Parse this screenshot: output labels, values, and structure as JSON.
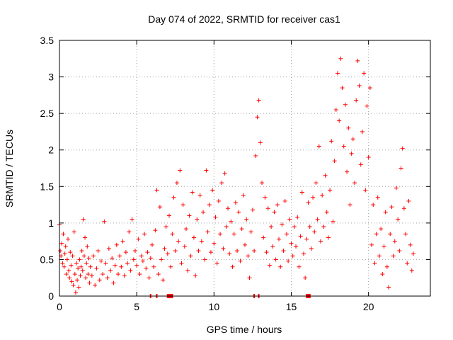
{
  "chart_data": {
    "type": "scatter",
    "title": "Day 074 of 2022, SRMTID for receiver cas1",
    "xlabel": "GPS time / hours",
    "ylabel": "SRMTID / TECUs",
    "xlim": [
      0,
      24
    ],
    "ylim": [
      0,
      3.5
    ],
    "xticks": [
      0,
      5,
      10,
      15,
      20
    ],
    "yticks": [
      0,
      0.5,
      1,
      1.5,
      2,
      2.5,
      3,
      3.5
    ],
    "xtick_labels": [
      "0",
      "5",
      "10",
      "15",
      "20"
    ],
    "ytick_labels": [
      "0",
      "0.5",
      "1",
      "1.5",
      "2",
      "2.5",
      "3",
      "3.5"
    ],
    "grid": true,
    "marker": "+",
    "color": "#ff0000",
    "series": [
      {
        "name": "SRMTID",
        "points": [
          [
            0.0,
            0.98
          ],
          [
            0.05,
            0.62
          ],
          [
            0.1,
            0.55
          ],
          [
            0.15,
            0.72
          ],
          [
            0.2,
            0.45
          ],
          [
            0.25,
            0.85
          ],
          [
            0.3,
            0.4
          ],
          [
            0.35,
            0.58
          ],
          [
            0.4,
            0.68
          ],
          [
            0.45,
            0.3
          ],
          [
            0.5,
            0.5
          ],
          [
            0.55,
            0.78
          ],
          [
            0.6,
            0.35
          ],
          [
            0.65,
            0.25
          ],
          [
            0.7,
            0.6
          ],
          [
            0.75,
            0.42
          ],
          [
            0.8,
            0.2
          ],
          [
            0.85,
            0.55
          ],
          [
            0.9,
            0.15
          ],
          [
            0.95,
            0.88
          ],
          [
            1.0,
            0.3
          ],
          [
            1.05,
            0.05
          ],
          [
            1.1,
            0.45
          ],
          [
            1.15,
            0.22
          ],
          [
            1.2,
            0.38
          ],
          [
            1.25,
            0.12
          ],
          [
            1.3,
            0.5
          ],
          [
            1.35,
            0.28
          ],
          [
            1.4,
            0.4
          ],
          [
            1.45,
            0.62
          ],
          [
            1.5,
            0.35
          ],
          [
            1.55,
            1.05
          ],
          [
            1.6,
            0.55
          ],
          [
            1.65,
            0.8
          ],
          [
            1.7,
            0.25
          ],
          [
            1.75,
            0.45
          ],
          [
            1.8,
            0.68
          ],
          [
            1.85,
            0.3
          ],
          [
            1.9,
            0.52
          ],
          [
            1.95,
            0.18
          ],
          [
            2.0,
            0.4
          ],
          [
            2.1,
            0.28
          ],
          [
            2.2,
            0.55
          ],
          [
            2.3,
            0.15
          ],
          [
            2.4,
            0.38
          ],
          [
            2.5,
            0.62
          ],
          [
            2.6,
            0.22
          ],
          [
            2.7,
            0.48
          ],
          [
            2.8,
            0.3
          ],
          [
            2.9,
            1.02
          ],
          [
            3.0,
            0.45
          ],
          [
            3.1,
            0.25
          ],
          [
            3.2,
            0.65
          ],
          [
            3.3,
            0.35
          ],
          [
            3.4,
            0.52
          ],
          [
            3.5,
            0.18
          ],
          [
            3.6,
            0.42
          ],
          [
            3.7,
            0.7
          ],
          [
            3.8,
            0.3
          ],
          [
            3.9,
            0.55
          ],
          [
            4.0,
            0.4
          ],
          [
            4.1,
            0.75
          ],
          [
            4.2,
            0.28
          ],
          [
            4.3,
            0.6
          ],
          [
            4.4,
            0.45
          ],
          [
            4.5,
            0.88
          ],
          [
            4.6,
            0.35
          ],
          [
            4.7,
            1.05
          ],
          [
            4.8,
            0.5
          ],
          [
            4.9,
            0.62
          ],
          [
            5.0,
            0.42
          ],
          [
            5.1,
            0.78
          ],
          [
            5.2,
            0.3
          ],
          [
            5.3,
            0.55
          ],
          [
            5.4,
            0.48
          ],
          [
            5.5,
            0.85
          ],
          [
            5.6,
            0.38
          ],
          [
            5.7,
            0.6
          ],
          [
            5.8,
            0.25
          ],
          [
            5.9,
            0.52
          ],
          [
            6.0,
            0.7
          ],
          [
            6.1,
            0.4
          ],
          [
            6.2,
            0.9
          ],
          [
            6.3,
            1.45
          ],
          [
            6.4,
            0.3
          ],
          [
            6.5,
            1.22
          ],
          [
            6.6,
            0.5
          ],
          [
            6.7,
            0.22
          ],
          [
            6.8,
            0.65
          ],
          [
            6.9,
            0.95
          ],
          [
            7.0,
            0.58
          ],
          [
            7.1,
            1.1
          ],
          [
            7.2,
            0.4
          ],
          [
            7.3,
            0.85
          ],
          [
            7.4,
            1.35
          ],
          [
            7.5,
            0.62
          ],
          [
            7.6,
            1.55
          ],
          [
            7.7,
            0.75
          ],
          [
            7.8,
            1.72
          ],
          [
            7.9,
            0.45
          ],
          [
            8.0,
            1.25
          ],
          [
            8.1,
            0.68
          ],
          [
            8.2,
            0.92
          ],
          [
            8.3,
            0.35
          ],
          [
            8.4,
            1.1
          ],
          [
            8.5,
            0.55
          ],
          [
            8.6,
            1.42
          ],
          [
            8.7,
            0.8
          ],
          [
            8.8,
            0.28
          ],
          [
            8.9,
            1.05
          ],
          [
            9.0,
            0.62
          ],
          [
            9.1,
            1.38
          ],
          [
            9.2,
            0.75
          ],
          [
            9.3,
            1.15
          ],
          [
            9.4,
            0.5
          ],
          [
            9.5,
            1.72
          ],
          [
            9.6,
            0.88
          ],
          [
            9.7,
            1.25
          ],
          [
            9.8,
            0.6
          ],
          [
            9.9,
            1.45
          ],
          [
            10.0,
            0.72
          ],
          [
            10.1,
            1.08
          ],
          [
            10.2,
            0.45
          ],
          [
            10.3,
            1.3
          ],
          [
            10.4,
            0.85
          ],
          [
            10.5,
            1.55
          ],
          [
            10.6,
            0.65
          ],
          [
            10.7,
            1.68
          ],
          [
            10.8,
            0.95
          ],
          [
            10.9,
            1.2
          ],
          [
            11.0,
            0.58
          ],
          [
            11.1,
            1.02
          ],
          [
            11.2,
            0.4
          ],
          [
            11.3,
            0.85
          ],
          [
            11.4,
            1.28
          ],
          [
            11.5,
            0.62
          ],
          [
            11.6,
            1.15
          ],
          [
            11.7,
            0.48
          ],
          [
            11.8,
            0.92
          ],
          [
            11.9,
            1.38
          ],
          [
            12.0,
            0.7
          ],
          [
            12.1,
            1.05
          ],
          [
            12.2,
            0.55
          ],
          [
            12.3,
            0.25
          ],
          [
            12.4,
            0.88
          ],
          [
            12.5,
            1.18
          ],
          [
            12.6,
            0.62
          ],
          [
            12.7,
            1.92
          ],
          [
            12.8,
            2.45
          ],
          [
            12.9,
            2.68
          ],
          [
            13.0,
            2.1
          ],
          [
            13.1,
            1.55
          ],
          [
            13.2,
            0.8
          ],
          [
            13.3,
            1.35
          ],
          [
            13.4,
            0.6
          ],
          [
            13.5,
            1.2
          ],
          [
            13.6,
            0.42
          ],
          [
            13.7,
            0.95
          ],
          [
            13.8,
            0.68
          ],
          [
            13.9,
            1.15
          ],
          [
            14.0,
            0.5
          ],
          [
            14.1,
            1.25
          ],
          [
            14.2,
            0.78
          ],
          [
            14.3,
            0.4
          ],
          [
            14.4,
            0.98
          ],
          [
            14.5,
            0.62
          ],
          [
            14.6,
            1.3
          ],
          [
            14.7,
            0.85
          ],
          [
            14.8,
            0.48
          ],
          [
            14.9,
            1.05
          ],
          [
            15.0,
            0.72
          ],
          [
            15.1,
            0.55
          ],
          [
            15.2,
            0.95
          ],
          [
            15.3,
            0.68
          ],
          [
            15.4,
            1.08
          ],
          [
            15.5,
            0.4
          ],
          [
            15.6,
            0.82
          ],
          [
            15.7,
            1.42
          ],
          [
            15.8,
            0.58
          ],
          [
            15.9,
            0.25
          ],
          [
            16.0,
            0.78
          ],
          [
            16.1,
            1.28
          ],
          [
            16.2,
            0.95
          ],
          [
            16.3,
            0.65
          ],
          [
            16.4,
            1.35
          ],
          [
            16.5,
            0.88
          ],
          [
            16.6,
            1.55
          ],
          [
            16.7,
            1.05
          ],
          [
            16.8,
            2.05
          ],
          [
            16.9,
            0.75
          ],
          [
            17.0,
            1.38
          ],
          [
            17.1,
            0.95
          ],
          [
            17.2,
            1.65
          ],
          [
            17.3,
            1.15
          ],
          [
            17.4,
            0.8
          ],
          [
            17.5,
            1.45
          ],
          [
            17.6,
            2.12
          ],
          [
            17.7,
            1.02
          ],
          [
            17.8,
            1.85
          ],
          [
            17.9,
            2.55
          ],
          [
            18.0,
            3.05
          ],
          [
            18.1,
            2.4
          ],
          [
            18.2,
            3.25
          ],
          [
            18.3,
            2.85
          ],
          [
            18.4,
            2.05
          ],
          [
            18.5,
            2.62
          ],
          [
            18.6,
            1.7
          ],
          [
            18.7,
            2.3
          ],
          [
            18.8,
            1.25
          ],
          [
            18.9,
            1.95
          ],
          [
            19.0,
            2.15
          ],
          [
            19.1,
            1.55
          ],
          [
            19.2,
            2.68
          ],
          [
            19.3,
            3.22
          ],
          [
            19.4,
            2.88
          ],
          [
            19.5,
            1.8
          ],
          [
            19.6,
            2.25
          ],
          [
            19.7,
            3.05
          ],
          [
            19.8,
            1.45
          ],
          [
            19.9,
            2.6
          ],
          [
            20.0,
            1.9
          ],
          [
            20.1,
            2.85
          ],
          [
            20.2,
            0.7
          ],
          [
            20.3,
            1.25
          ],
          [
            20.4,
            0.45
          ],
          [
            20.5,
            0.85
          ],
          [
            20.6,
            1.35
          ],
          [
            20.7,
            0.55
          ],
          [
            20.8,
            0.92
          ],
          [
            20.9,
            0.3
          ],
          [
            21.0,
            0.68
          ],
          [
            21.1,
            1.15
          ],
          [
            21.2,
            0.4
          ],
          [
            21.3,
            0.12
          ],
          [
            21.4,
            0.85
          ],
          [
            21.5,
            1.22
          ],
          [
            21.6,
            0.55
          ],
          [
            21.7,
            0.75
          ],
          [
            21.8,
            1.48
          ],
          [
            21.9,
            1.05
          ],
          [
            22.0,
            0.62
          ],
          [
            22.1,
            1.75
          ],
          [
            22.2,
            2.02
          ],
          [
            22.3,
            1.2
          ],
          [
            22.4,
            0.85
          ],
          [
            22.5,
            0.45
          ],
          [
            22.6,
            1.3
          ],
          [
            22.7,
            0.7
          ],
          [
            22.8,
            0.35
          ],
          [
            22.9,
            0.58
          ]
        ]
      }
    ],
    "data_gaps": [
      {
        "start": 5.85,
        "end": 5.9
      },
      {
        "start": 6.25,
        "end": 6.3
      },
      {
        "start": 6.95,
        "end": 7.35
      },
      {
        "start": 12.55,
        "end": 12.65
      },
      {
        "start": 12.85,
        "end": 12.9
      },
      {
        "start": 15.95,
        "end": 16.25
      }
    ]
  }
}
